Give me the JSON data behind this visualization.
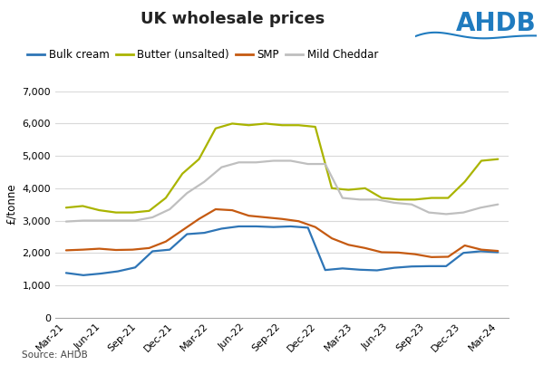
{
  "title": "UK wholesale prices",
  "ylabel": "£/tonne",
  "source": "Source: AHDB",
  "ylim": [
    0,
    7000
  ],
  "yticks": [
    0,
    1000,
    2000,
    3000,
    4000,
    5000,
    6000,
    7000
  ],
  "x_labels": [
    "Mar-21",
    "Jun-21",
    "Sep-21",
    "Dec-21",
    "Mar-22",
    "Jun-22",
    "Sep-22",
    "Dec-22",
    "Mar-23",
    "Jun-23",
    "Sep-23",
    "Dec-23",
    "Mar-24"
  ],
  "series": {
    "Bulk cream": {
      "color": "#2e75b6",
      "values": [
        1380,
        1310,
        1360,
        1430,
        1550,
        2050,
        2100,
        2580,
        2620,
        2750,
        2820,
        2820,
        2800,
        2820,
        2780,
        1470,
        1520,
        1480,
        1460,
        1540,
        1580,
        1590,
        1590,
        2000,
        2050,
        2020
      ]
    },
    "Butter (unsalted)": {
      "color": "#aab400",
      "values": [
        3400,
        3450,
        3320,
        3250,
        3250,
        3300,
        3700,
        4450,
        4900,
        5850,
        6000,
        5950,
        6000,
        5950,
        5950,
        5900,
        4000,
        3950,
        4000,
        3700,
        3650,
        3650,
        3700,
        3700,
        4200,
        4850,
        4900
      ]
    },
    "SMP": {
      "color": "#c55a11",
      "values": [
        2080,
        2100,
        2130,
        2090,
        2100,
        2150,
        2350,
        2700,
        3050,
        3350,
        3320,
        3150,
        3100,
        3050,
        2980,
        2800,
        2450,
        2250,
        2150,
        2020,
        2010,
        1960,
        1870,
        1880,
        2230,
        2100,
        2060
      ]
    },
    "Mild Cheddar": {
      "color": "#bfbfbf",
      "values": [
        2970,
        3000,
        3000,
        3000,
        3000,
        3100,
        3350,
        3850,
        4200,
        4650,
        4800,
        4800,
        4850,
        4850,
        4750,
        4750,
        3700,
        3650,
        3650,
        3550,
        3500,
        3250,
        3200,
        3250,
        3400,
        3500
      ]
    }
  },
  "background_color": "#ffffff",
  "grid_color": "#d9d9d9",
  "title_fontsize": 13,
  "label_fontsize": 8.5,
  "tick_fontsize": 8,
  "ahdb_color": "#1f7bbf",
  "ahdb_fontsize": 20
}
